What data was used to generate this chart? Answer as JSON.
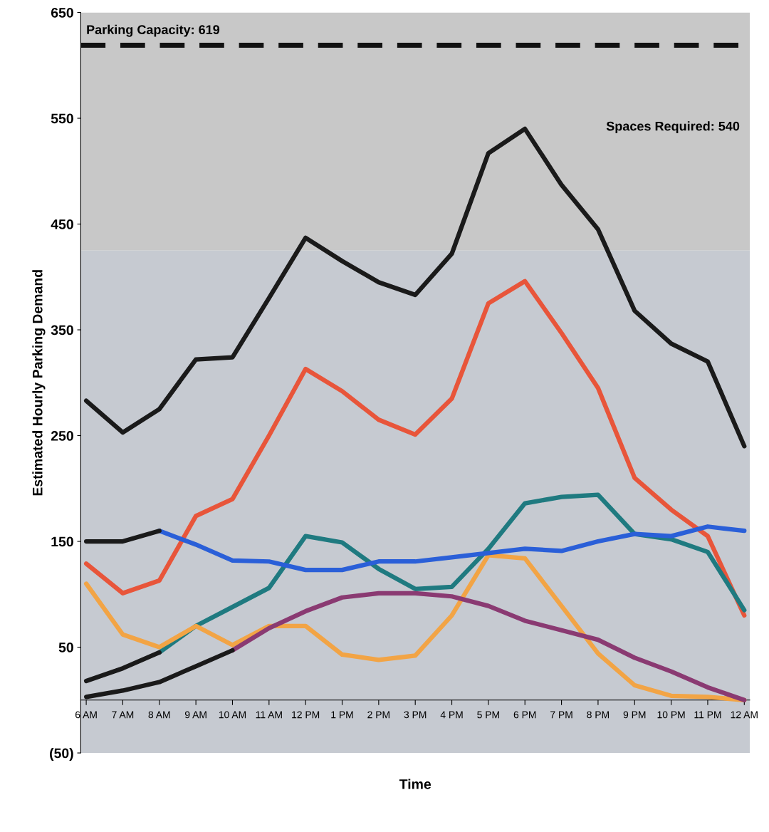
{
  "chart_data": {
    "type": "line",
    "xlabel": "Time",
    "ylabel": "Estimated Hourly Parking Demand",
    "categories": [
      "6 AM",
      "7 AM",
      "8 AM",
      "9 AM",
      "10 AM",
      "11 AM",
      "12 PM",
      "1 PM",
      "2 PM",
      "3 PM",
      "4 PM",
      "5 PM",
      "6 PM",
      "7 PM",
      "8 PM",
      "9 PM",
      "10 PM",
      "11 PM",
      "12 AM"
    ],
    "series": [
      {
        "color": "#1a1a1a",
        "values": [
          283,
          253,
          275,
          322,
          324,
          380,
          437,
          415,
          395,
          383,
          422,
          517,
          540,
          487,
          445,
          368,
          337,
          320,
          240
        ]
      },
      {
        "color": "#e8553a",
        "values": [
          129,
          101,
          113,
          174,
          190,
          250,
          313,
          292,
          265,
          251,
          285,
          375,
          396,
          347,
          295,
          210,
          180,
          155,
          80
        ]
      },
      {
        "color": "#1f7a80",
        "values": [
          null,
          null,
          45,
          70,
          88,
          106,
          155,
          149,
          124,
          105,
          107,
          143,
          186,
          192,
          194,
          157,
          152,
          140,
          85
        ]
      },
      {
        "color": "#1a1a1a",
        "values": [
          18,
          30,
          45,
          null,
          null,
          null,
          null,
          null,
          null,
          null,
          null,
          null,
          null,
          null,
          null,
          null,
          null,
          null,
          null
        ]
      },
      {
        "color": "#f2a445",
        "values": [
          110,
          62,
          50,
          70,
          52,
          70,
          70,
          43,
          38,
          42,
          80,
          137,
          134,
          89,
          44,
          14,
          4,
          3,
          0
        ]
      },
      {
        "color": "#8a3a72",
        "values": [
          null,
          null,
          null,
          null,
          47,
          68,
          84,
          97,
          101,
          101,
          98,
          89,
          75,
          66,
          57,
          40,
          27,
          12,
          0
        ]
      },
      {
        "color": "#1a1a1a",
        "values": [
          3,
          9,
          17,
          32,
          47,
          null,
          null,
          null,
          null,
          null,
          null,
          null,
          null,
          null,
          null,
          null,
          null,
          null,
          null
        ]
      },
      {
        "color": "#2a5fd8",
        "values": [
          null,
          null,
          160,
          147,
          132,
          131,
          123,
          123,
          131,
          131,
          135,
          139,
          143,
          141,
          150,
          157,
          155,
          164,
          160
        ]
      },
      {
        "color": "#1a1a1a",
        "values": [
          150,
          150,
          160,
          null,
          null,
          null,
          null,
          null,
          null,
          null,
          null,
          null,
          null,
          null,
          null,
          null,
          null,
          null,
          null
        ]
      }
    ],
    "ylim": [
      -50,
      650
    ],
    "yticks": [
      {
        "value": -50,
        "label": "(50)"
      },
      50,
      150,
      250,
      350,
      450,
      550,
      650
    ],
    "ref_lines": [
      {
        "axis": "y",
        "value": 619,
        "label": "Parking Capacity: 619",
        "color": "#111111",
        "line_style": "dashed"
      }
    ],
    "bands": [
      {
        "axis": "y",
        "from": 425,
        "to": 650,
        "color": "#c8c8c8"
      },
      {
        "axis": "y",
        "from": -50,
        "to": 425,
        "color": "#c6cad1"
      }
    ],
    "annotations": [
      "Spaces Required: 540"
    ],
    "grid": false,
    "marker": "none",
    "line_style": "solid"
  }
}
